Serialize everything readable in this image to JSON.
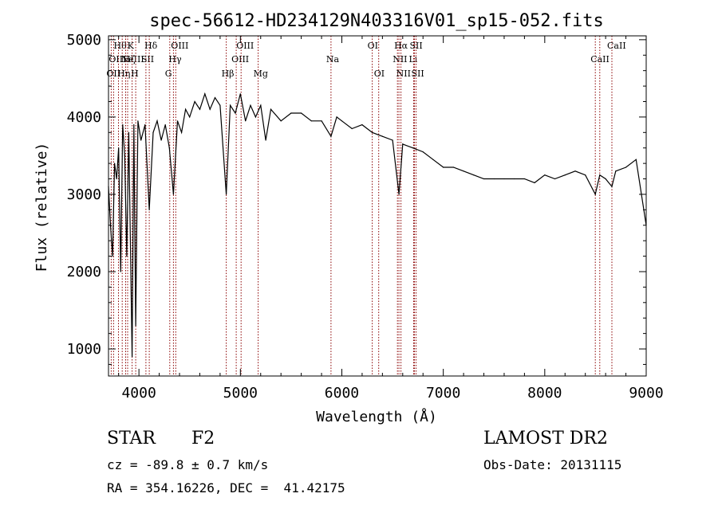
{
  "chart_data": {
    "type": "line",
    "title": "spec-56612-HD234129N403316V01_sp15-052.fits",
    "xlabel": "Wavelength (Å)",
    "ylabel": "Flux (relative)",
    "xlim": [
      3700,
      9000
    ],
    "ylim": [
      650,
      5050
    ],
    "x_ticks": [
      4000,
      5000,
      6000,
      7000,
      8000,
      9000
    ],
    "y_ticks": [
      1000,
      2000,
      3000,
      4000,
      5000
    ],
    "x_tick_labels": [
      "4000",
      "5000",
      "6000",
      "7000",
      "8000",
      "9000"
    ],
    "y_tick_labels": [
      "1000",
      "2000",
      "3000",
      "4000",
      "5000"
    ],
    "grid": false,
    "line_color": "#000000",
    "marker_color": "#8b0000",
    "series": [
      {
        "x": [
          3700,
          3720,
          3740,
          3760,
          3780,
          3800,
          3820,
          3840,
          3860,
          3880,
          3900,
          3933,
          3950,
          3968,
          3990,
          4020,
          4060,
          4102,
          4140,
          4180,
          4220,
          4260,
          4300,
          4340,
          4380,
          4420,
          4460,
          4500,
          4550,
          4600,
          4650,
          4700,
          4750,
          4800,
          4861,
          4900,
          4950,
          5000,
          5050,
          5100,
          5150,
          5200,
          5250,
          5300,
          5400,
          5500,
          5600,
          5700,
          5800,
          5893,
          5950,
          6000,
          6100,
          6200,
          6300,
          6400,
          6500,
          6563,
          6600,
          6700,
          6800,
          6900,
          7000,
          7100,
          7200,
          7300,
          7400,
          7500,
          7600,
          7700,
          7800,
          7900,
          8000,
          8100,
          8200,
          8300,
          8400,
          8498,
          8542,
          8600,
          8662,
          8700,
          8800,
          8900,
          9000
        ],
        "y": [
          3100,
          2600,
          2200,
          3400,
          3200,
          3600,
          2000,
          3900,
          3500,
          2200,
          3800,
          900,
          3900,
          1300,
          3950,
          3700,
          3900,
          2800,
          3800,
          3950,
          3700,
          3900,
          3600,
          3000,
          3950,
          3800,
          4100,
          4000,
          4200,
          4100,
          4300,
          4100,
          4250,
          4150,
          3000,
          4150,
          4050,
          4300,
          3950,
          4150,
          4000,
          4150,
          3700,
          4100,
          3950,
          4050,
          4050,
          3950,
          3950,
          3750,
          4000,
          3950,
          3850,
          3900,
          3800,
          3750,
          3700,
          3000,
          3650,
          3600,
          3550,
          3450,
          3350,
          3350,
          3300,
          3250,
          3200,
          3200,
          3200,
          3200,
          3200,
          3150,
          3250,
          3200,
          3250,
          3300,
          3250,
          3000,
          3250,
          3200,
          3100,
          3300,
          3350,
          3450,
          2600
        ]
      }
    ],
    "line_markers": [
      {
        "x": 3727,
        "label": "OII",
        "row": 2
      },
      {
        "x": 3750,
        "label": "OIII",
        "row": 1
      },
      {
        "x": 3798,
        "label": "Hθ",
        "row": 0
      },
      {
        "x": 3835,
        "label": "Hη",
        "row": 2
      },
      {
        "x": 3869,
        "label": "NeIII",
        "row": 1
      },
      {
        "x": 3889,
        "label": "Hζ",
        "row": 1
      },
      {
        "x": 3933,
        "label": "K",
        "row": 0
      },
      {
        "x": 3968,
        "label": "H",
        "row": 2
      },
      {
        "x": 4069,
        "label": "SII",
        "row": 1
      },
      {
        "x": 4102,
        "label": "Hδ",
        "row": 0
      },
      {
        "x": 4304,
        "label": "G",
        "row": 2
      },
      {
        "x": 4340,
        "label": "Hγ",
        "row": 1
      },
      {
        "x": 4363,
        "label": "OIII",
        "row": 0
      },
      {
        "x": 4861,
        "label": "Hβ",
        "row": 2
      },
      {
        "x": 4959,
        "label": "OIII",
        "row": 1
      },
      {
        "x": 5007,
        "label": "OIII",
        "row": 0
      },
      {
        "x": 5175,
        "label": "Mg",
        "row": 2
      },
      {
        "x": 5893,
        "label": "Na",
        "row": 1
      },
      {
        "x": 6300,
        "label": "OI",
        "row": 0
      },
      {
        "x": 6363,
        "label": "OI",
        "row": 2
      },
      {
        "x": 6548,
        "label": "NII",
        "row": 1
      },
      {
        "x": 6563,
        "label": "Hα",
        "row": 0
      },
      {
        "x": 6583,
        "label": "NII",
        "row": 2
      },
      {
        "x": 6708,
        "label": "Li",
        "row": 1
      },
      {
        "x": 6716,
        "label": "SII",
        "row": 0
      },
      {
        "x": 6731,
        "label": "SII",
        "row": 2
      },
      {
        "x": 8498,
        "label": "CaII",
        "row": 1
      },
      {
        "x": 8542,
        "label": "",
        "row": 1
      },
      {
        "x": 8662,
        "label": "CaII",
        "row": 0
      }
    ]
  },
  "info": {
    "object_class": "STAR",
    "subclass": "F2",
    "survey": "LAMOST DR2",
    "velocity": "cz = -89.8 ± 0.7 km/s",
    "obs_date": "Obs-Date: 20131115",
    "coordinates": "RA = 354.16226, DEC =  41.42175"
  }
}
